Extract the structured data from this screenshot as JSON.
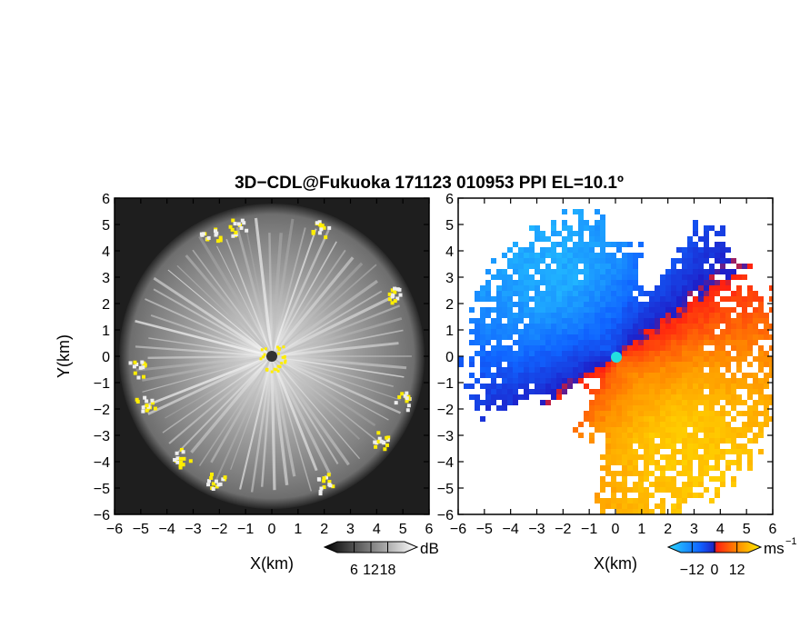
{
  "title": "3D−CDL@Fukuoka 171123 010953 PPI EL=10.1º",
  "chart_data": [
    {
      "type": "heatmap",
      "panel": "left",
      "description_field": "reflectivity PPI (grayscale)",
      "xlabel": "X(km)",
      "ylabel": "Y(km)",
      "xlim": [
        -6,
        6
      ],
      "ylim": [
        -6,
        6
      ],
      "xticks": [
        "−6",
        "−5",
        "−4",
        "−3",
        "−2",
        "−1",
        "0",
        "1",
        "2",
        "3",
        "4",
        "5",
        "6"
      ],
      "yticks": [
        "−6",
        "−5",
        "−4",
        "−3",
        "−2",
        "−1",
        "0",
        "1",
        "2",
        "3",
        "4",
        "5",
        "6"
      ],
      "colorbar": {
        "ticks": [
          "6",
          "12",
          "18"
        ],
        "tick_values": [
          6,
          12,
          18
        ],
        "range": [
          0,
          24
        ],
        "unit": "dB",
        "colormap": "grayscale"
      },
      "range_ring_km": 5.2,
      "grid": false
    },
    {
      "type": "heatmap",
      "panel": "right",
      "description_field": "Doppler velocity PPI",
      "xlabel": "X(km)",
      "ylabel": "",
      "xlim": [
        -6,
        6
      ],
      "ylim": [
        -6,
        6
      ],
      "xticks": [
        "−6",
        "−5",
        "−4",
        "−3",
        "−2",
        "−1",
        "0",
        "1",
        "2",
        "3",
        "4",
        "5",
        "6"
      ],
      "yticks": [
        "−6",
        "−5",
        "−4",
        "−3",
        "−2",
        "−1",
        "0",
        "1",
        "2",
        "3",
        "4",
        "5",
        "6"
      ],
      "colorbar": {
        "ticks": [
          "−12",
          "0",
          "12"
        ],
        "tick_values": [
          -12,
          0,
          12
        ],
        "range": [
          -18,
          18
        ],
        "unit": "ms",
        "unit_exp": "−1",
        "colormap": "cyan-blue-red-yellow"
      },
      "grid": false
    }
  ],
  "colors": {
    "left_background": "#1e1e1e",
    "sensor_marker": "#333333",
    "echo_yellow": "#ffee00",
    "velocity_center": "#22e0e0"
  }
}
